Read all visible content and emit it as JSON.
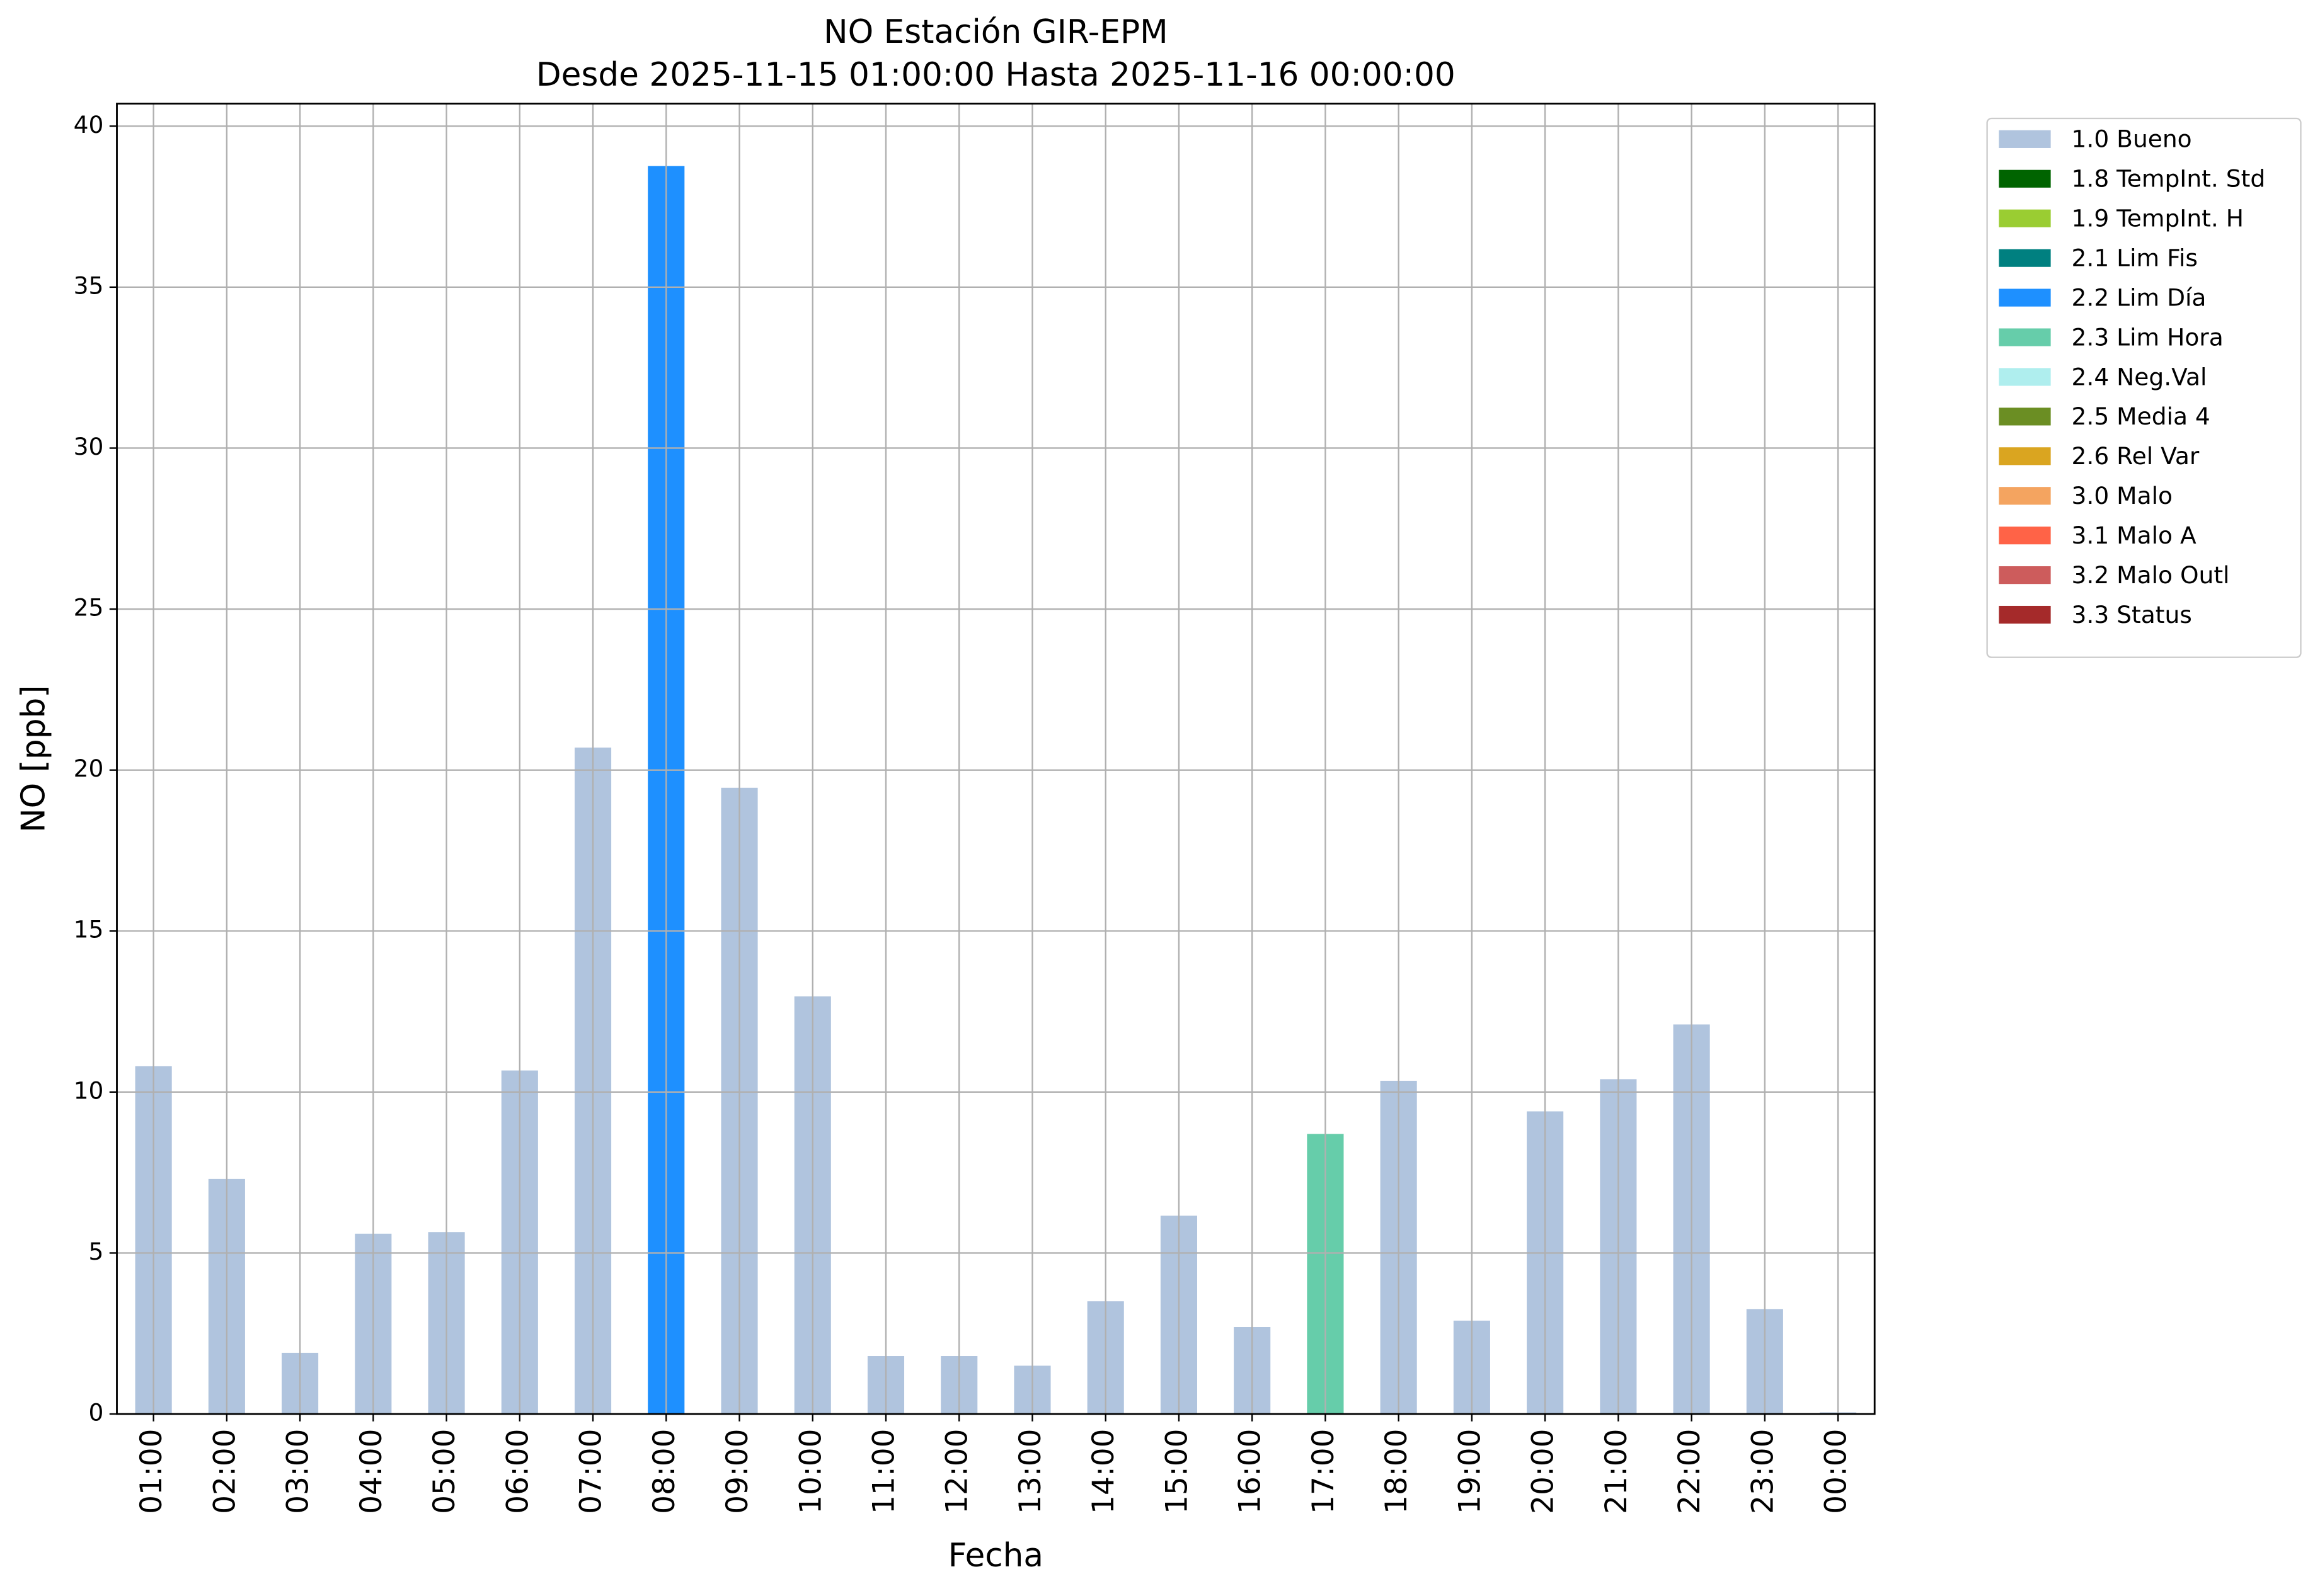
{
  "chart_data": {
    "type": "stacked_bar",
    "title": "NO Estación GIR-EPM",
    "subtitle": "Desde 2025-11-15 01:00:00 Hasta 2025-11-16 00:00:00",
    "x_label": "Fecha",
    "y_label": "NO [ppb]",
    "categories": [
      "01:00",
      "02:00",
      "03:00",
      "04:00",
      "05:00",
      "06:00",
      "07:00",
      "08:00",
      "09:00",
      "10:00",
      "11:00",
      "12:00",
      "13:00",
      "14:00",
      "15:00",
      "16:00",
      "17:00",
      "18:00",
      "19:00",
      "20:00",
      "21:00",
      "22:00",
      "23:00",
      "00:00"
    ],
    "series": [
      {
        "name": "1.0 Bueno",
        "color": "#b0c4de",
        "values": [
          10.8,
          7.3,
          1.9,
          5.6,
          5.65,
          10.67,
          20.7,
          null,
          19.45,
          12.97,
          1.8,
          1.8,
          1.5,
          3.5,
          6.16,
          2.7,
          null,
          10.35,
          2.9,
          9.4,
          10.4,
          12.1,
          3.26,
          0.05
        ]
      },
      {
        "name": "1.8 TempInt. Std",
        "color": "#006400",
        "values": [
          null,
          null,
          null,
          null,
          null,
          null,
          null,
          null,
          null,
          null,
          null,
          null,
          null,
          null,
          null,
          null,
          null,
          null,
          null,
          null,
          null,
          null,
          null,
          null
        ]
      },
      {
        "name": "1.9 TempInt. H",
        "color": "#9acd32",
        "values": [
          null,
          null,
          null,
          null,
          null,
          null,
          null,
          null,
          null,
          null,
          null,
          null,
          null,
          null,
          null,
          null,
          null,
          null,
          null,
          null,
          null,
          null,
          null,
          null
        ]
      },
      {
        "name": "2.1 Lim Fis",
        "color": "#008080",
        "values": [
          null,
          null,
          null,
          null,
          null,
          null,
          null,
          null,
          null,
          null,
          null,
          null,
          null,
          null,
          null,
          null,
          null,
          null,
          null,
          null,
          null,
          null,
          null,
          null
        ]
      },
      {
        "name": "2.2 Lim Día",
        "color": "#1e90ff",
        "values": [
          null,
          null,
          null,
          null,
          null,
          null,
          null,
          38.76,
          null,
          null,
          null,
          null,
          null,
          null,
          null,
          null,
          null,
          null,
          null,
          null,
          null,
          null,
          null,
          null
        ]
      },
      {
        "name": "2.3 Lim Hora",
        "color": "#66cdaa",
        "values": [
          null,
          null,
          null,
          null,
          null,
          null,
          null,
          null,
          null,
          null,
          null,
          null,
          null,
          null,
          null,
          null,
          8.7,
          null,
          null,
          null,
          null,
          null,
          null,
          null
        ]
      },
      {
        "name": "2.4 Neg.Val",
        "color": "#afeeee",
        "values": [
          null,
          null,
          null,
          null,
          null,
          null,
          null,
          null,
          null,
          null,
          null,
          null,
          null,
          null,
          null,
          null,
          null,
          null,
          null,
          null,
          null,
          null,
          null,
          null
        ]
      },
      {
        "name": "2.5 Media 4",
        "color": "#6b8e23",
        "values": [
          null,
          null,
          null,
          null,
          null,
          null,
          null,
          null,
          null,
          null,
          null,
          null,
          null,
          null,
          null,
          null,
          null,
          null,
          null,
          null,
          null,
          null,
          null,
          null
        ]
      },
      {
        "name": "2.6 Rel Var",
        "color": "#daa520",
        "values": [
          null,
          null,
          null,
          null,
          null,
          null,
          null,
          null,
          null,
          null,
          null,
          null,
          null,
          null,
          null,
          null,
          null,
          null,
          null,
          null,
          null,
          null,
          null,
          null
        ]
      },
      {
        "name": "3.0 Malo",
        "color": "#f4a460",
        "values": [
          null,
          null,
          null,
          null,
          null,
          null,
          null,
          null,
          null,
          null,
          null,
          null,
          null,
          null,
          null,
          null,
          null,
          null,
          null,
          null,
          null,
          null,
          null,
          null
        ]
      },
      {
        "name": "3.1 Malo A",
        "color": "#ff6347",
        "values": [
          null,
          null,
          null,
          null,
          null,
          null,
          null,
          null,
          null,
          null,
          null,
          null,
          null,
          null,
          null,
          null,
          null,
          null,
          null,
          null,
          null,
          null,
          null,
          null
        ]
      },
      {
        "name": "3.2 Malo Outl",
        "color": "#cd5c5c",
        "values": [
          null,
          null,
          null,
          null,
          null,
          null,
          null,
          null,
          null,
          null,
          null,
          null,
          null,
          null,
          null,
          null,
          null,
          null,
          null,
          null,
          null,
          null,
          null,
          null
        ]
      },
      {
        "name": "3.3 Status",
        "color": "#a52a2a",
        "values": [
          null,
          null,
          null,
          null,
          null,
          null,
          null,
          null,
          null,
          null,
          null,
          null,
          null,
          null,
          null,
          null,
          null,
          null,
          null,
          null,
          null,
          null,
          null,
          null
        ]
      }
    ],
    "ylim": [
      0,
      40.7
    ],
    "yticks": [
      0,
      5,
      10,
      15,
      20,
      25,
      30,
      35,
      40
    ],
    "grid": true,
    "legend": "outside-right"
  }
}
